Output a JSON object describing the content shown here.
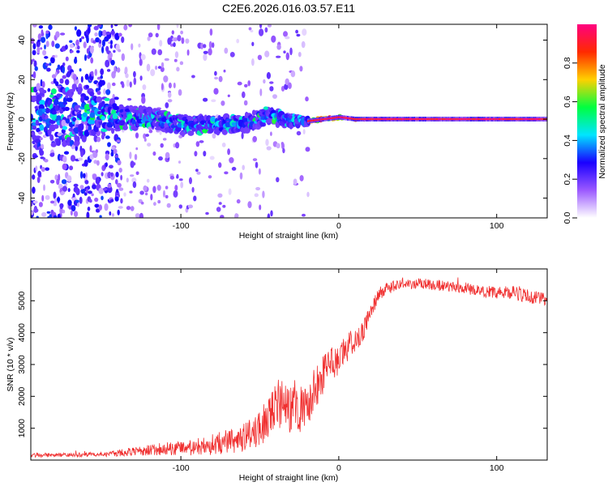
{
  "title": "C2E6.2026.016.03.57.E11",
  "chart_data": [
    {
      "type": "heatmap",
      "title": "",
      "xlabel": "Height of straight line (km)",
      "ylabel": "Frequency (Hz)",
      "xlim": [
        -195,
        132
      ],
      "ylim": [
        -50,
        48
      ],
      "xticks": [
        -100,
        0,
        100
      ],
      "xtick_labels": [
        "-100",
        "0",
        "100"
      ],
      "yticks": [
        -40,
        -20,
        0,
        20,
        40
      ],
      "ytick_labels": [
        "-40",
        "-20",
        "0",
        "20",
        "40"
      ],
      "grid": false,
      "ridge": {
        "x": [
          -195,
          -160,
          -140,
          -120,
          -100,
          -80,
          -60,
          -45,
          -30,
          -20,
          -10,
          0,
          10,
          20,
          50,
          80,
          100,
          110,
          132
        ],
        "frequency": [
          0,
          2,
          1,
          0,
          -3,
          -3,
          -2,
          2,
          -1,
          -1,
          0,
          1,
          0,
          0,
          0,
          0,
          0,
          0,
          0
        ],
        "width_hz": [
          30,
          30,
          12,
          10,
          9,
          8,
          8,
          8,
          6,
          3,
          2,
          2,
          1.5,
          1,
          1,
          1,
          1,
          1,
          1
        ]
      },
      "colorbar": {
        "label": "Normalized spectral amplitude",
        "range": [
          0,
          1
        ],
        "ticks": [
          0.0,
          0.2,
          0.4,
          0.6,
          0.8
        ],
        "tick_labels": [
          "0.0",
          "0.2",
          "0.4",
          "0.6",
          "0.8"
        ],
        "colors": [
          "#ffffff",
          "#9b59ff",
          "#1a00ff",
          "#00e5ff",
          "#00ff40",
          "#ffd000",
          "#ff2a00",
          "#ff0080"
        ]
      }
    },
    {
      "type": "line",
      "title": "",
      "xlabel": "Height of straight line (km)",
      "ylabel": "SNR (10 * v/v)",
      "xlim": [
        -195,
        132
      ],
      "ylim": [
        0,
        6000
      ],
      "xticks": [
        -100,
        0,
        100
      ],
      "xtick_labels": [
        "-100",
        "0",
        "100"
      ],
      "yticks": [
        1000,
        2000,
        3000,
        4000,
        5000
      ],
      "ytick_labels": [
        "1000",
        "2000",
        "3000",
        "4000",
        "5000"
      ],
      "grid": false,
      "color": "#f03030",
      "series": [
        {
          "name": "SNR",
          "x": [
            -195,
            -180,
            -160,
            -150,
            -140,
            -130,
            -120,
            -110,
            -100,
            -90,
            -80,
            -70,
            -60,
            -50,
            -45,
            -40,
            -35,
            -30,
            -25,
            -20,
            -15,
            -10,
            -5,
            0,
            5,
            10,
            15,
            20,
            25,
            30,
            40,
            50,
            60,
            70,
            80,
            90,
            100,
            110,
            120,
            132
          ],
          "y": [
            150,
            160,
            170,
            180,
            220,
            260,
            330,
            350,
            380,
            400,
            450,
            550,
            700,
            1000,
            1300,
            1600,
            1900,
            1700,
            1600,
            1500,
            2300,
            2700,
            3000,
            3200,
            3500,
            3800,
            4000,
            4600,
            5200,
            5400,
            5500,
            5550,
            5500,
            5450,
            5400,
            5300,
            5250,
            5250,
            5150,
            5000
          ],
          "noise": [
            60,
            60,
            70,
            80,
            100,
            140,
            180,
            200,
            220,
            260,
            300,
            350,
            450,
            550,
            650,
            800,
            900,
            900,
            800,
            700,
            700,
            650,
            550,
            500,
            450,
            400,
            350,
            250,
            220,
            200,
            170,
            170,
            170,
            170,
            180,
            180,
            200,
            220,
            220,
            220
          ]
        }
      ]
    }
  ]
}
